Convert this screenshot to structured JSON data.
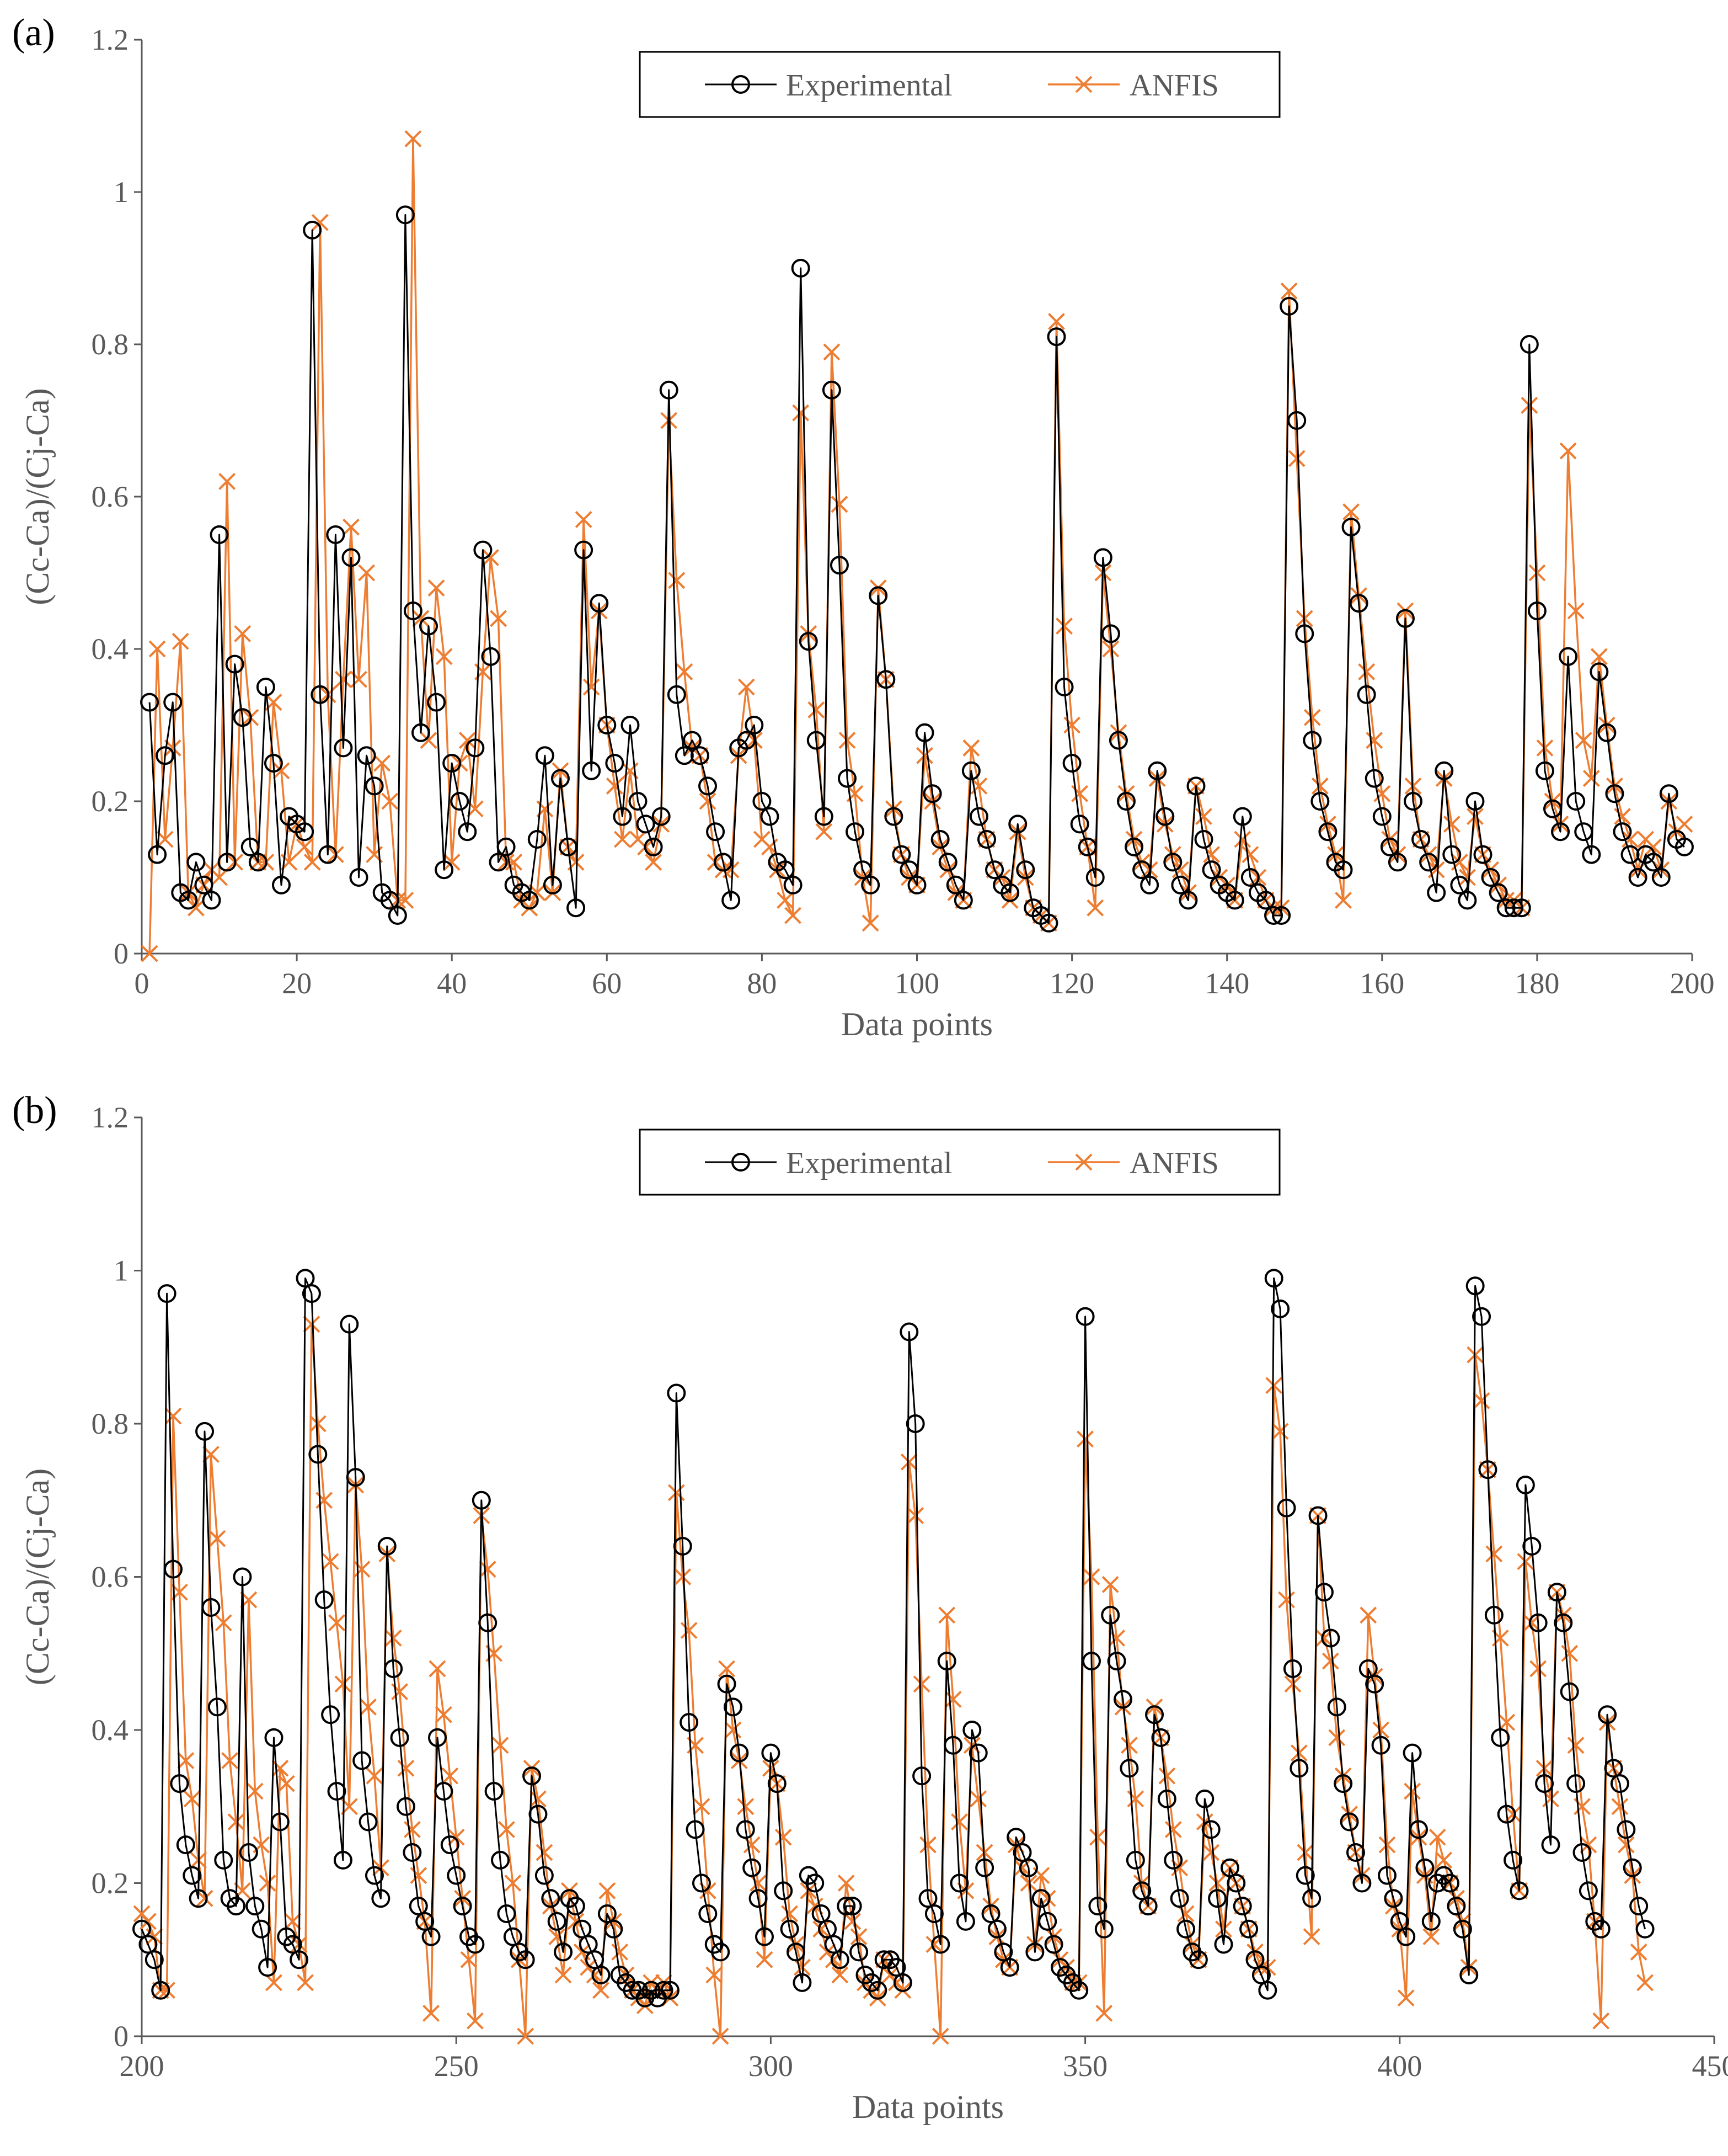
{
  "colors": {
    "experimental": "#000000",
    "anfis": "#ED7D31",
    "axis": "#595959"
  },
  "chart_data": [
    {
      "type": "line",
      "panel_label": "(a)",
      "xlabel": "Data points",
      "ylabel": "(Cc-Ca)/(Cj-Ca)",
      "xlim": [
        0,
        200
      ],
      "ylim": [
        0,
        1.2
      ],
      "xticks": [
        "0",
        "20",
        "40",
        "60",
        "80",
        "100",
        "120",
        "140",
        "160",
        "180",
        "200"
      ],
      "yticks": [
        "0",
        "0.2",
        "0.4",
        "0.6",
        "0.8",
        "1",
        "1.2"
      ],
      "legend": [
        "Experimental",
        "ANFIS"
      ],
      "legend_position": "top-center",
      "x_start": 1,
      "series": [
        {
          "name": "Experimental",
          "marker": "circle",
          "values": [
            0.33,
            0.13,
            0.26,
            0.33,
            0.08,
            0.07,
            0.12,
            0.09,
            0.07,
            0.55,
            0.12,
            0.38,
            0.31,
            0.14,
            0.12,
            0.35,
            0.25,
            0.09,
            0.18,
            0.17,
            0.16,
            0.95,
            0.34,
            0.13,
            0.55,
            0.27,
            0.52,
            0.1,
            0.26,
            0.22,
            0.08,
            0.07,
            0.05,
            0.97,
            0.45,
            0.29,
            0.43,
            0.33,
            0.11,
            0.25,
            0.2,
            0.16,
            0.27,
            0.53,
            0.39,
            0.12,
            0.14,
            0.09,
            0.08,
            0.07,
            0.15,
            0.26,
            0.09,
            0.23,
            0.14,
            0.06,
            0.53,
            0.24,
            0.46,
            0.3,
            0.25,
            0.18,
            0.3,
            0.2,
            0.17,
            0.14,
            0.18,
            0.74,
            0.34,
            0.26,
            0.28,
            0.26,
            0.22,
            0.16,
            0.12,
            0.07,
            0.27,
            0.28,
            0.3,
            0.2,
            0.18,
            0.12,
            0.11,
            0.09,
            0.9,
            0.41,
            0.28,
            0.18,
            0.74,
            0.51,
            0.23,
            0.16,
            0.11,
            0.09,
            0.47,
            0.36,
            0.18,
            0.13,
            0.11,
            0.09,
            0.29,
            0.21,
            0.15,
            0.12,
            0.09,
            0.07,
            0.24,
            0.18,
            0.15,
            0.11,
            0.09,
            0.08,
            0.17,
            0.11,
            0.06,
            0.05,
            0.04,
            0.81,
            0.35,
            0.25,
            0.17,
            0.14,
            0.1,
            0.52,
            0.42,
            0.28,
            0.2,
            0.14,
            0.11,
            0.09,
            0.24,
            0.18,
            0.12,
            0.09,
            0.07,
            0.22,
            0.15,
            0.11,
            0.09,
            0.08,
            0.07,
            0.18,
            0.1,
            0.08,
            0.07,
            0.05,
            0.05,
            0.85,
            0.7,
            0.42,
            0.28,
            0.2,
            0.16,
            0.12,
            0.11,
            0.56,
            0.46,
            0.34,
            0.23,
            0.18,
            0.14,
            0.12,
            0.44,
            0.2,
            0.15,
            0.12,
            0.08,
            0.24,
            0.13,
            0.09,
            0.07,
            0.2,
            0.13,
            0.1,
            0.08,
            0.06,
            0.06,
            0.06,
            0.8,
            0.45,
            0.24,
            0.19,
            0.16,
            0.39,
            0.2,
            0.16,
            0.13,
            0.37,
            0.29,
            0.21,
            0.16,
            0.13,
            0.1,
            0.13,
            0.12,
            0.1,
            0.21,
            0.15,
            0.14
          ]
        },
        {
          "name": "ANFIS",
          "marker": "x",
          "values": [
            0.0,
            0.4,
            0.15,
            0.27,
            0.41,
            0.08,
            0.06,
            0.09,
            0.11,
            0.1,
            0.62,
            0.12,
            0.42,
            0.31,
            0.12,
            0.12,
            0.33,
            0.24,
            0.12,
            0.17,
            0.14,
            0.12,
            0.96,
            0.34,
            0.13,
            0.36,
            0.56,
            0.36,
            0.5,
            0.13,
            0.25,
            0.2,
            0.07,
            0.07,
            1.07,
            0.44,
            0.28,
            0.48,
            0.39,
            0.12,
            0.25,
            0.28,
            0.19,
            0.37,
            0.52,
            0.44,
            0.12,
            0.12,
            0.07,
            0.06,
            0.08,
            0.19,
            0.08,
            0.24,
            0.14,
            0.12,
            0.57,
            0.35,
            0.45,
            0.3,
            0.22,
            0.15,
            0.24,
            0.15,
            0.14,
            0.12,
            0.17,
            0.7,
            0.49,
            0.37,
            0.27,
            0.26,
            0.2,
            0.12,
            0.11,
            0.11,
            0.26,
            0.35,
            0.28,
            0.15,
            0.14,
            0.11,
            0.07,
            0.05,
            0.71,
            0.42,
            0.32,
            0.16,
            0.79,
            0.59,
            0.28,
            0.21,
            0.1,
            0.04,
            0.48,
            0.36,
            0.19,
            0.13,
            0.1,
            0.09,
            0.26,
            0.2,
            0.14,
            0.11,
            0.08,
            0.07,
            0.27,
            0.22,
            0.15,
            0.11,
            0.1,
            0.07,
            0.16,
            0.1,
            0.06,
            0.05,
            0.04,
            0.83,
            0.43,
            0.3,
            0.21,
            0.14,
            0.06,
            0.5,
            0.4,
            0.29,
            0.21,
            0.15,
            0.12,
            0.11,
            0.23,
            0.17,
            0.13,
            0.11,
            0.08,
            0.22,
            0.18,
            0.13,
            0.1,
            0.09,
            0.07,
            0.15,
            0.13,
            0.1,
            0.07,
            0.06,
            0.06,
            0.87,
            0.65,
            0.44,
            0.31,
            0.22,
            0.17,
            0.13,
            0.07,
            0.58,
            0.47,
            0.37,
            0.28,
            0.21,
            0.15,
            0.13,
            0.45,
            0.22,
            0.15,
            0.13,
            0.11,
            0.23,
            0.17,
            0.12,
            0.1,
            0.18,
            0.13,
            0.11,
            0.09,
            0.07,
            0.07,
            0.06,
            0.72,
            0.5,
            0.27,
            0.2,
            0.17,
            0.66,
            0.45,
            0.28,
            0.23,
            0.39,
            0.3,
            0.22,
            0.18,
            0.15,
            0.11,
            0.15,
            0.14,
            0.11,
            0.2,
            0.16,
            0.17
          ]
        }
      ]
    },
    {
      "type": "line",
      "panel_label": "(b)",
      "xlabel": "Data points",
      "ylabel": "(Cc-Ca)/(Cj-Ca)",
      "xlim": [
        200,
        450
      ],
      "ylim": [
        0,
        1.2
      ],
      "xticks": [
        "200",
        "250",
        "300",
        "350",
        "400",
        "450"
      ],
      "yticks": [
        "0",
        "0.2",
        "0.4",
        "0.6",
        "0.8",
        "1",
        "1.2"
      ],
      "legend": [
        "Experimental",
        "ANFIS"
      ],
      "legend_position": "top-center",
      "x_start": 200,
      "series": [
        {
          "name": "Experimental",
          "marker": "circle",
          "values": [
            0.14,
            0.12,
            0.1,
            0.06,
            0.97,
            0.61,
            0.33,
            0.25,
            0.21,
            0.18,
            0.79,
            0.56,
            0.43,
            0.23,
            0.18,
            0.17,
            0.6,
            0.24,
            0.17,
            0.14,
            0.09,
            0.39,
            0.28,
            0.13,
            0.12,
            0.1,
            0.99,
            0.97,
            0.76,
            0.57,
            0.42,
            0.32,
            0.23,
            0.93,
            0.73,
            0.36,
            0.28,
            0.21,
            0.18,
            0.64,
            0.48,
            0.39,
            0.3,
            0.24,
            0.17,
            0.15,
            0.13,
            0.39,
            0.32,
            0.25,
            0.21,
            0.17,
            0.13,
            0.12,
            0.7,
            0.54,
            0.32,
            0.23,
            0.16,
            0.13,
            0.11,
            0.1,
            0.34,
            0.29,
            0.21,
            0.18,
            0.15,
            0.11,
            0.18,
            0.17,
            0.14,
            0.12,
            0.1,
            0.08,
            0.16,
            0.14,
            0.08,
            0.07,
            0.06,
            0.06,
            0.05,
            0.06,
            0.05,
            0.06,
            0.06,
            0.84,
            0.64,
            0.41,
            0.27,
            0.2,
            0.16,
            0.12,
            0.11,
            0.46,
            0.43,
            0.37,
            0.27,
            0.22,
            0.18,
            0.13,
            0.37,
            0.33,
            0.19,
            0.14,
            0.11,
            0.07,
            0.21,
            0.2,
            0.16,
            0.14,
            0.12,
            0.1,
            0.17,
            0.17,
            0.11,
            0.08,
            0.07,
            0.06,
            0.1,
            0.1,
            0.09,
            0.07,
            0.92,
            0.8,
            0.34,
            0.18,
            0.16,
            0.12,
            0.49,
            0.38,
            0.2,
            0.15,
            0.4,
            0.37,
            0.22,
            0.16,
            0.14,
            0.11,
            0.09,
            0.26,
            0.24,
            0.22,
            0.11,
            0.18,
            0.15,
            0.12,
            0.09,
            0.08,
            0.07,
            0.06,
            0.94,
            0.49,
            0.17,
            0.14,
            0.55,
            0.49,
            0.44,
            0.35,
            0.23,
            0.19,
            0.17,
            0.42,
            0.39,
            0.31,
            0.23,
            0.18,
            0.14,
            0.11,
            0.1,
            0.31,
            0.27,
            0.18,
            0.12,
            0.22,
            0.2,
            0.17,
            0.14,
            0.1,
            0.08,
            0.06,
            0.99,
            0.95,
            0.69,
            0.48,
            0.35,
            0.21,
            0.18,
            0.68,
            0.58,
            0.52,
            0.43,
            0.33,
            0.28,
            0.24,
            0.2,
            0.48,
            0.46,
            0.38,
            0.21,
            0.18,
            0.15,
            0.13,
            0.37,
            0.27,
            0.22,
            0.15,
            0.2,
            0.21,
            0.2,
            0.17,
            0.14,
            0.08,
            0.98,
            0.94,
            0.74,
            0.55,
            0.39,
            0.29,
            0.23,
            0.19,
            0.72,
            0.64,
            0.54,
            0.33,
            0.25,
            0.58,
            0.54,
            0.45,
            0.33,
            0.24,
            0.19,
            0.15,
            0.14,
            0.42,
            0.35,
            0.33,
            0.27,
            0.22,
            0.17,
            0.14
          ]
        },
        {
          "name": "ANFIS",
          "marker": "x",
          "values": [
            0.16,
            0.15,
            0.13,
            0.06,
            0.06,
            0.81,
            0.58,
            0.36,
            0.31,
            0.23,
            0.18,
            0.76,
            0.65,
            0.54,
            0.36,
            0.28,
            0.19,
            0.57,
            0.32,
            0.25,
            0.2,
            0.07,
            0.35,
            0.33,
            0.15,
            0.12,
            0.07,
            0.93,
            0.8,
            0.7,
            0.62,
            0.54,
            0.46,
            0.3,
            0.72,
            0.61,
            0.43,
            0.34,
            0.22,
            0.63,
            0.52,
            0.45,
            0.35,
            0.27,
            0.21,
            0.15,
            0.03,
            0.48,
            0.42,
            0.34,
            0.26,
            0.18,
            0.1,
            0.02,
            0.68,
            0.61,
            0.5,
            0.38,
            0.27,
            0.2,
            0.1,
            0.0,
            0.35,
            0.31,
            0.24,
            0.17,
            0.13,
            0.08,
            0.19,
            0.15,
            0.11,
            0.09,
            0.08,
            0.06,
            0.19,
            0.15,
            0.11,
            0.08,
            0.06,
            0.05,
            0.04,
            0.07,
            0.06,
            0.07,
            0.05,
            0.71,
            0.6,
            0.53,
            0.38,
            0.3,
            0.19,
            0.08,
            0.0,
            0.48,
            0.4,
            0.36,
            0.3,
            0.25,
            0.2,
            0.1,
            0.35,
            0.33,
            0.26,
            0.16,
            0.12,
            0.09,
            0.19,
            0.17,
            0.14,
            0.11,
            0.1,
            0.08,
            0.2,
            0.15,
            0.13,
            0.07,
            0.06,
            0.05,
            0.1,
            0.08,
            0.07,
            0.06,
            0.75,
            0.68,
            0.46,
            0.25,
            0.12,
            0.0,
            0.55,
            0.44,
            0.28,
            0.19,
            0.38,
            0.31,
            0.24,
            0.17,
            0.13,
            0.1,
            0.09,
            0.25,
            0.22,
            0.2,
            0.12,
            0.21,
            0.18,
            0.13,
            0.1,
            0.09,
            0.07,
            0.07,
            0.78,
            0.6,
            0.26,
            0.03,
            0.59,
            0.52,
            0.43,
            0.38,
            0.31,
            0.2,
            0.17,
            0.43,
            0.39,
            0.34,
            0.27,
            0.22,
            0.16,
            0.12,
            0.1,
            0.28,
            0.24,
            0.2,
            0.14,
            0.22,
            0.2,
            0.17,
            0.14,
            0.11,
            0.09,
            0.09,
            0.85,
            0.79,
            0.57,
            0.46,
            0.37,
            0.24,
            0.13,
            0.68,
            0.52,
            0.49,
            0.39,
            0.34,
            0.29,
            0.24,
            0.21,
            0.55,
            0.47,
            0.4,
            0.25,
            0.17,
            0.14,
            0.05,
            0.32,
            0.26,
            0.21,
            0.13,
            0.26,
            0.23,
            0.2,
            0.18,
            0.15,
            0.09,
            0.89,
            0.83,
            0.74,
            0.63,
            0.52,
            0.41,
            0.29,
            0.19,
            0.62,
            0.54,
            0.48,
            0.35,
            0.31,
            0.58,
            0.55,
            0.5,
            0.38,
            0.3,
            0.25,
            0.15,
            0.02,
            0.41,
            0.35,
            0.3,
            0.25,
            0.21,
            0.11,
            0.07
          ]
        }
      ]
    }
  ]
}
